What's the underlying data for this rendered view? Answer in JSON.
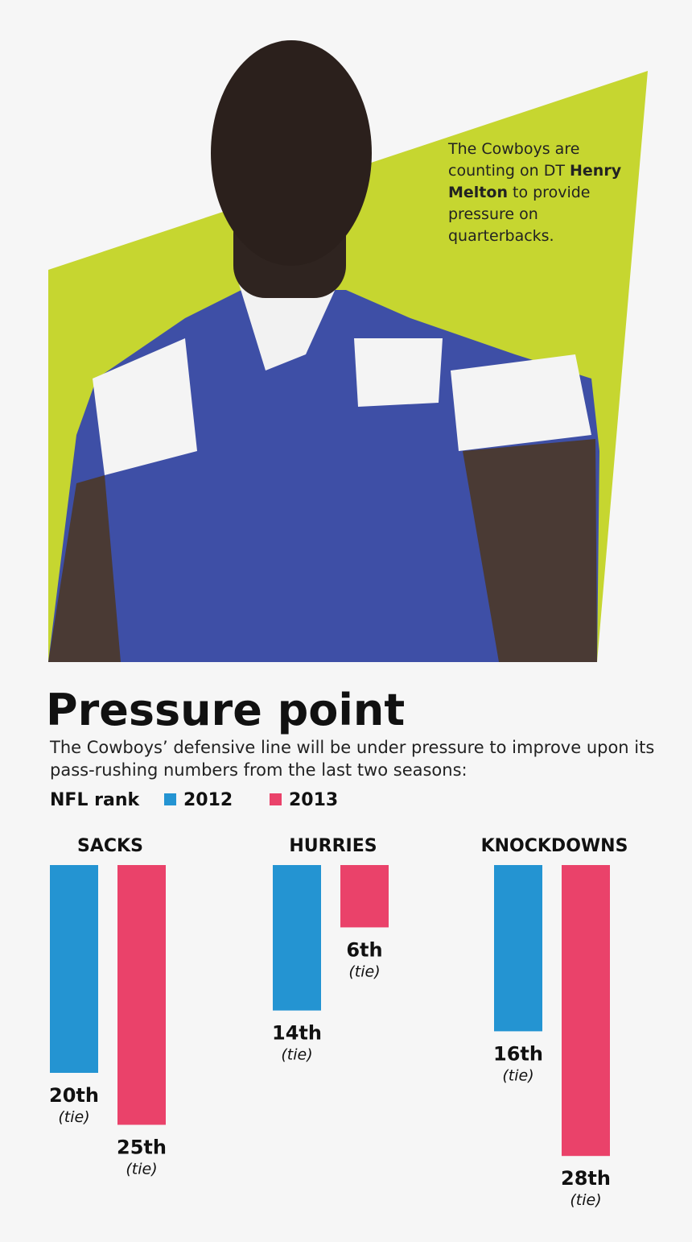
{
  "caption": [
    "The Cowboys are counting on DT ",
    "Henry Melton",
    " to provide pressure on quarterbacks."
  ],
  "chart_data": {
    "type": "bar",
    "title": "Pressure point",
    "subtitle": "The Cowboys’ defensive line will be under pressure to improve upon its pass-rushing numbers from the last two seasons:",
    "legend_title": "NFL rank",
    "categories": [
      "SACKS",
      "HURRIES",
      "KNOCKDOWNS"
    ],
    "series": [
      {
        "name": "2012",
        "color": "#2494d2",
        "values": [
          20,
          14,
          16
        ],
        "value_labels": [
          "20th",
          "14th",
          "16th"
        ],
        "value_notes": [
          "(tie)",
          "(tie)",
          "(tie)"
        ]
      },
      {
        "name": "2013",
        "color": "#ea426a",
        "values": [
          25,
          6,
          28
        ],
        "value_labels": [
          "25th",
          "6th",
          "28th"
        ],
        "value_notes": [
          "(tie)",
          "(tie)",
          "(tie)"
        ]
      }
    ]
  }
}
